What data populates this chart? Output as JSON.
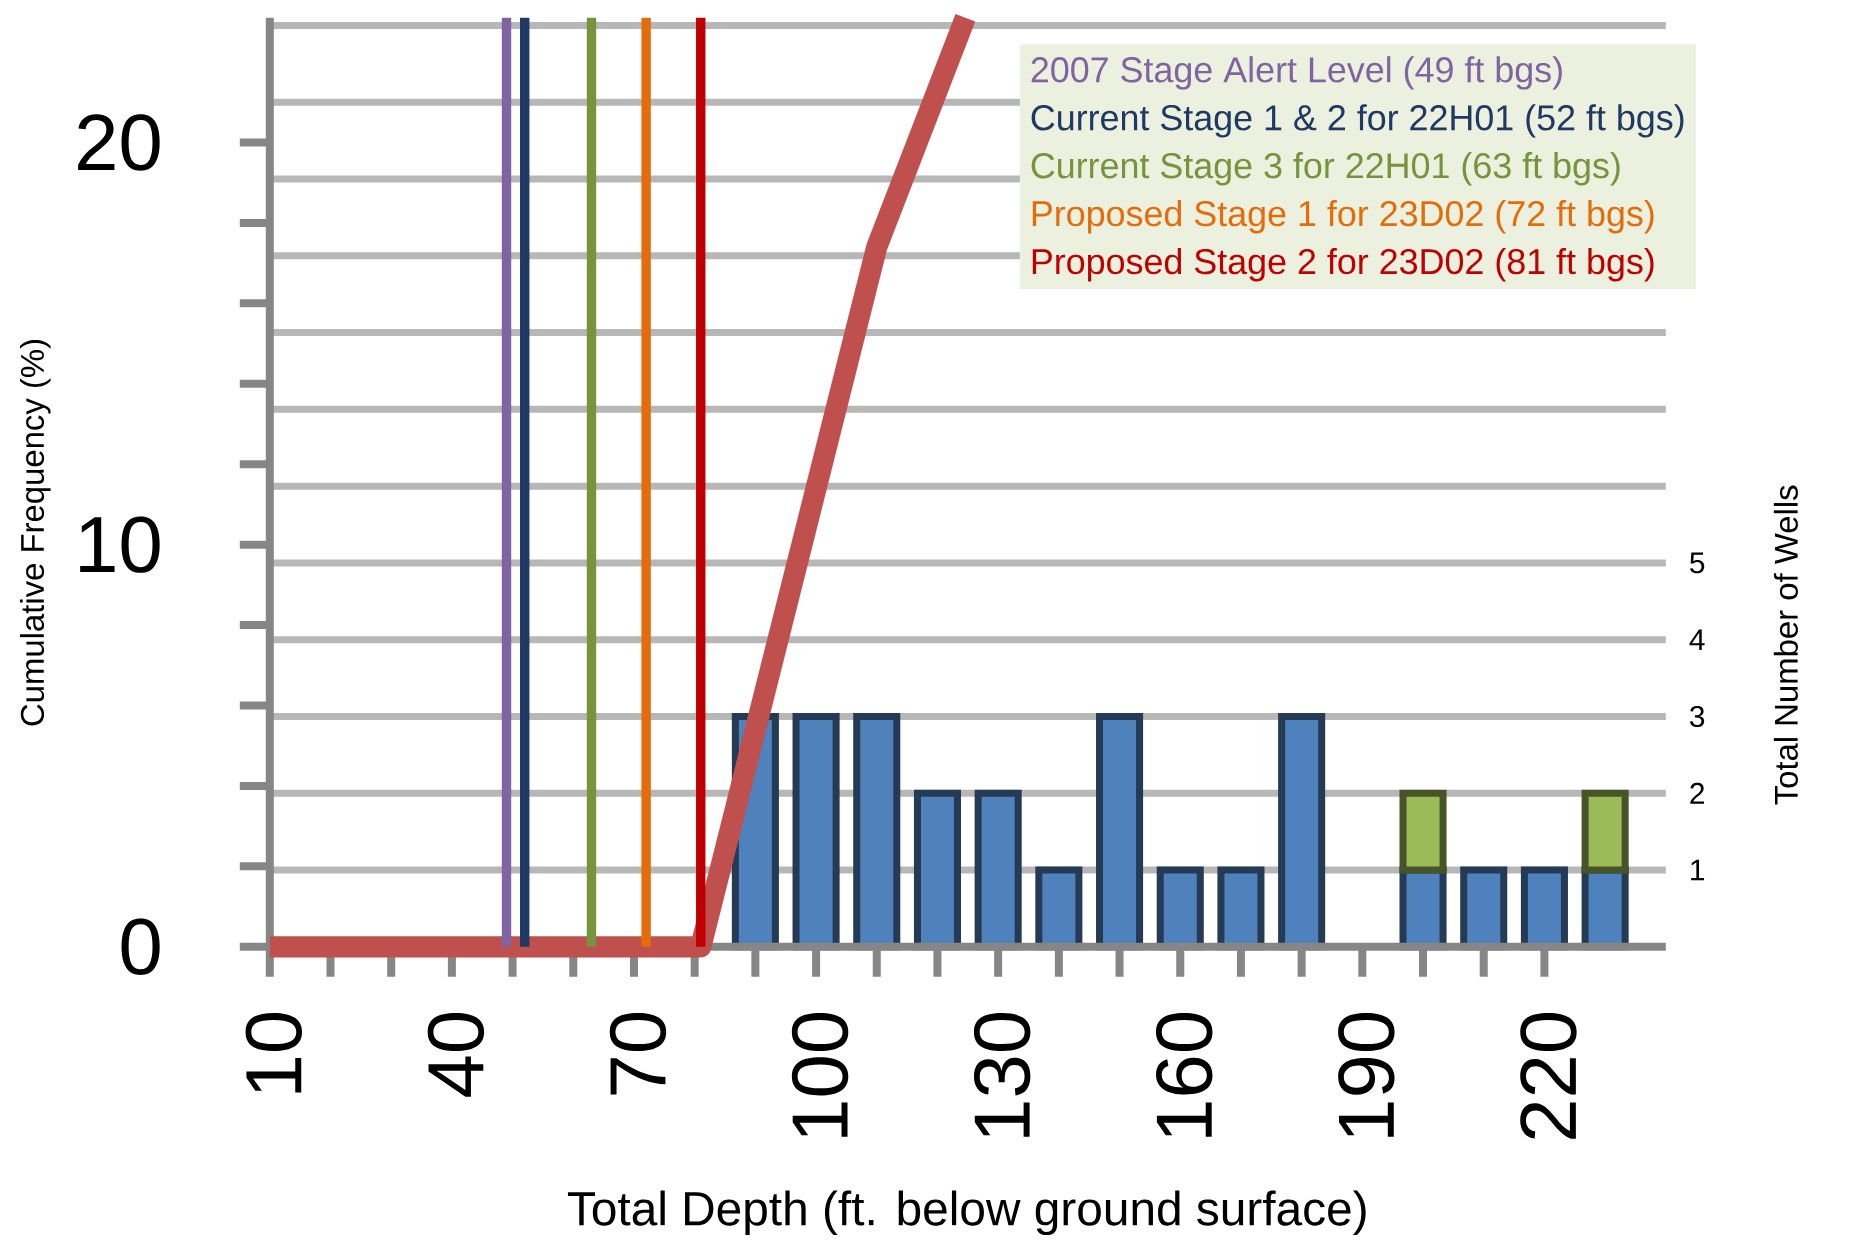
{
  "chart_data": {
    "type": "bar",
    "xlabel": "Total Depth (ft. below ground surface)",
    "ylabel": "Cumulative Frequency (%)",
    "y2label": "Total Number of Wells",
    "xlim": [
      10,
      240
    ],
    "xticks": [
      10,
      40,
      70,
      100,
      130,
      160,
      190,
      220
    ],
    "ylim": [
      0,
      23.1
    ],
    "yticks": [
      0,
      10,
      20
    ],
    "y2lim": [
      0,
      12.1
    ],
    "y2ticks": [
      1,
      2,
      3,
      4,
      5,
      {
        "value": 6,
        "label": null
      },
      {
        "value": 7,
        "label": null
      },
      {
        "value": 8,
        "label": null
      },
      {
        "value": 9,
        "label": null
      },
      {
        "value": 10,
        "label": null
      },
      {
        "value": 11,
        "label": null
      },
      {
        "value": 12,
        "label": null
      }
    ],
    "grid": "y",
    "stacked": true,
    "legend": "top right",
    "x": [
      90,
      100,
      110,
      120,
      130,
      140,
      150,
      160,
      170,
      180,
      190,
      200,
      210,
      220,
      230
    ],
    "series": [
      {
        "axis": "y2",
        "color": "#4f81bd",
        "values": [
          3,
          3,
          3,
          2,
          2,
          1,
          3,
          1,
          1,
          3,
          null,
          1,
          1,
          1,
          1
        ]
      },
      {
        "axis": "y2",
        "color": "#9bbb59",
        "values": [
          null,
          null,
          null,
          null,
          null,
          null,
          null,
          null,
          null,
          null,
          null,
          1,
          null,
          null,
          1
        ]
      },
      {
        "type": "line",
        "color": "#c0504d",
        "x": [
          10,
          81,
          110,
          124.6
        ],
        "values": [
          0,
          0,
          17.4,
          23.1
        ]
      }
    ],
    "ref_lines": [
      {
        "axis": "x",
        "value": 49,
        "label": "2007 Stage Alert Level (49 ft bgs)",
        "color": "#8064a2"
      },
      {
        "axis": "x",
        "value": 52,
        "label": "Current Stage 1 & 2 for 22H01 (52 ft bgs)",
        "color": "#1f3864"
      },
      {
        "axis": "x",
        "value": 63,
        "label": "Current Stage 3 for 22H01 (63 ft bgs)",
        "color": "#77933c"
      },
      {
        "axis": "x",
        "value": 72,
        "label": "Proposed Stage 1 for 23D02 (72 ft bgs)",
        "color": "#e46c0a"
      },
      {
        "axis": "x",
        "value": 81,
        "label": "Proposed Stage 2 for 23D02 (81 ft bgs)",
        "color": "#c00000"
      }
    ]
  }
}
